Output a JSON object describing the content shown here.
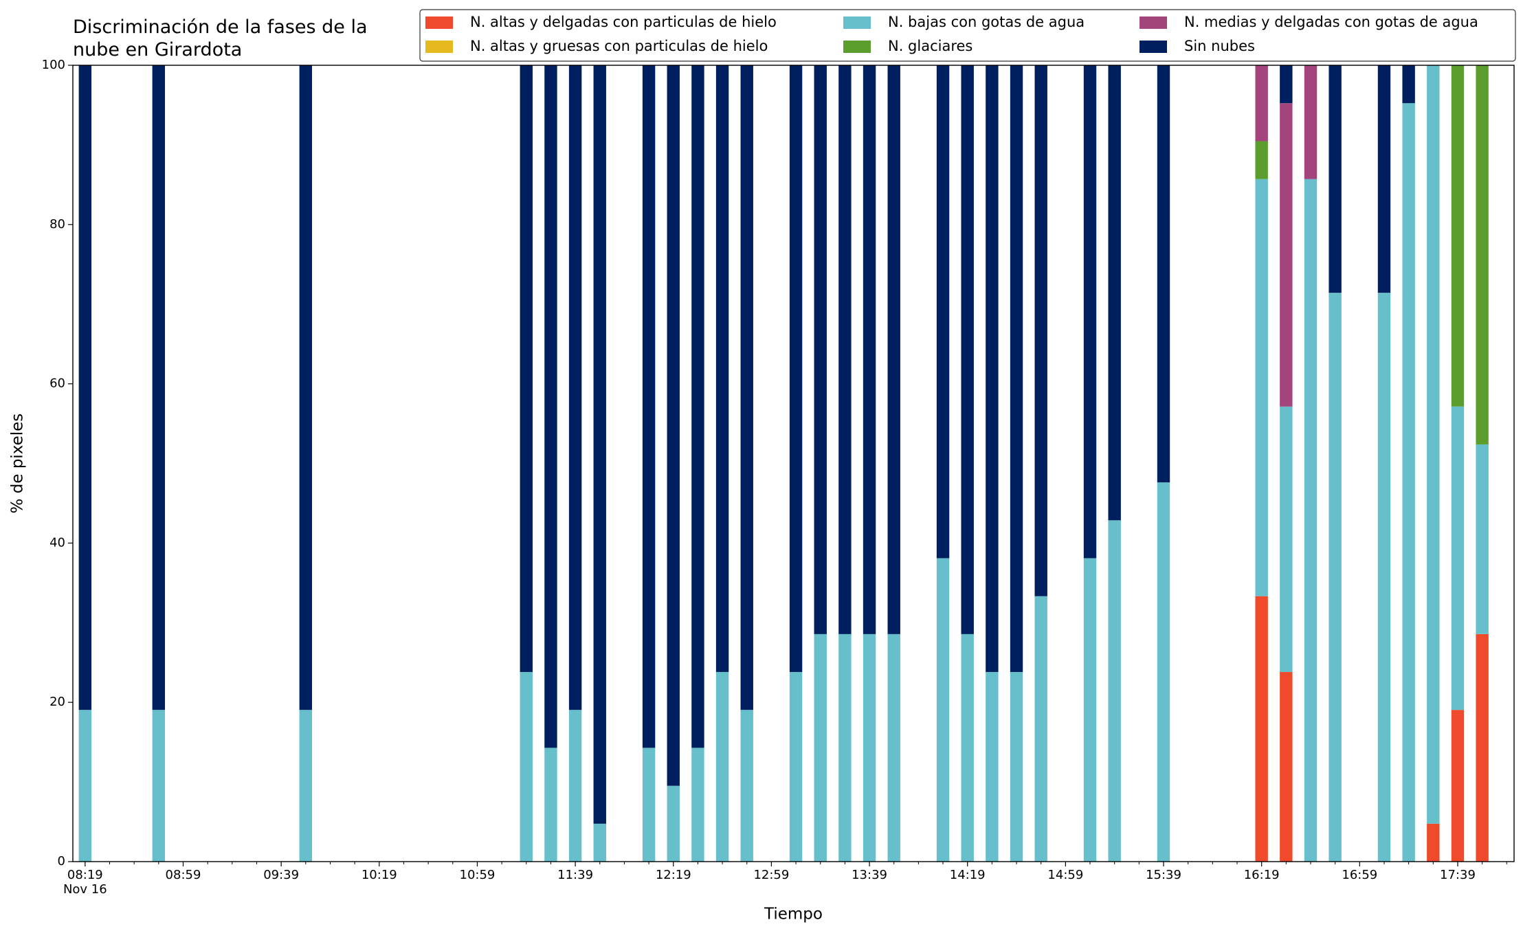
{
  "chart_data": {
    "type": "stacked_bar",
    "title": "Discriminación de la fases de la\nnube en Girardota",
    "xlabel": "Tiempo",
    "ylabel": "% de pixeles",
    "x": [
      "08:19",
      "08:49",
      "09:49",
      "11:19",
      "11:29",
      "11:39",
      "11:49",
      "12:09",
      "12:19",
      "12:29",
      "12:39",
      "12:49",
      "13:09",
      "13:19",
      "13:29",
      "13:39",
      "13:49",
      "14:09",
      "14:19",
      "14:29",
      "14:39",
      "14:49",
      "15:09",
      "15:19",
      "15:39",
      "16:19",
      "16:29",
      "16:39",
      "16:49",
      "17:09",
      "17:19",
      "17:29",
      "17:39",
      "17:49"
    ],
    "series": [
      {
        "name": "N. altas y delgadas con particulas de hielo",
        "color": "#ef4a2b",
        "values": [
          0,
          0,
          0,
          0,
          0,
          0,
          0,
          0,
          0,
          0,
          0,
          0,
          0,
          0,
          0,
          0,
          0,
          0,
          0,
          0,
          0,
          0,
          0,
          0,
          0,
          33.33,
          23.81,
          0,
          0,
          0,
          0,
          4.76,
          19.05,
          28.57
        ]
      },
      {
        "name": "N. altas y gruesas con particulas de hielo",
        "color": "#e6b91e",
        "values": [
          0,
          0,
          0,
          0,
          0,
          0,
          0,
          0,
          0,
          0,
          0,
          0,
          0,
          0,
          0,
          0,
          0,
          0,
          0,
          0,
          0,
          0,
          0,
          0,
          0,
          0,
          0,
          0,
          0,
          0,
          0,
          0,
          0,
          0
        ]
      },
      {
        "name": "N. bajas con gotas de agua",
        "color": "#67bfcb",
        "values": [
          19.05,
          19.05,
          19.05,
          23.81,
          14.29,
          19.05,
          4.76,
          14.29,
          9.52,
          14.29,
          23.81,
          19.05,
          23.81,
          28.57,
          28.57,
          28.57,
          28.57,
          38.1,
          28.57,
          23.81,
          23.81,
          33.33,
          38.1,
          42.86,
          47.62,
          52.38,
          33.33,
          85.71,
          71.43,
          71.43,
          95.24,
          95.24,
          38.1,
          23.81
        ]
      },
      {
        "name": "N. glaciares",
        "color": "#5c9e2e",
        "values": [
          0,
          0,
          0,
          0,
          0,
          0,
          0,
          0,
          0,
          0,
          0,
          0,
          0,
          0,
          0,
          0,
          0,
          0,
          0,
          0,
          0,
          0,
          0,
          0,
          0,
          4.76,
          0,
          0,
          0,
          0,
          0,
          0,
          42.86,
          47.62
        ]
      },
      {
        "name": "N. medias y delgadas con gotas de agua",
        "color": "#a3447c",
        "values": [
          0,
          0,
          0,
          0,
          0,
          0,
          0,
          0,
          0,
          0,
          0,
          0,
          0,
          0,
          0,
          0,
          0,
          0,
          0,
          0,
          0,
          0,
          0,
          0,
          0,
          9.52,
          38.1,
          14.29,
          0,
          0,
          0,
          0,
          0,
          0
        ]
      },
      {
        "name": "Sin nubes",
        "color": "#001f5e",
        "values": [
          80.95,
          80.95,
          80.95,
          76.19,
          85.71,
          80.95,
          95.24,
          85.71,
          90.48,
          85.71,
          76.19,
          80.95,
          76.19,
          71.43,
          71.43,
          71.43,
          71.43,
          61.9,
          71.43,
          76.19,
          76.19,
          66.67,
          61.9,
          57.14,
          52.38,
          0,
          4.76,
          0,
          28.57,
          28.57,
          4.76,
          0,
          0,
          0
        ]
      }
    ],
    "xlim": [
      "08:14",
      "18:02"
    ],
    "xticks": [
      {
        "value": "08:19",
        "label": "08:19\nNov 16"
      },
      "08:59",
      "09:39",
      "10:19",
      "10:59",
      "11:39",
      "12:19",
      "12:59",
      "13:39",
      "14:19",
      "14:59",
      "15:39",
      "16:19",
      "16:59",
      "17:39"
    ],
    "xminorticks": [
      "08:29",
      "08:39",
      "08:49",
      "09:09",
      "09:19",
      "09:29",
      "09:49",
      "09:59",
      "10:09",
      "10:29",
      "10:39",
      "10:49",
      "11:09",
      "11:19",
      "11:29",
      "11:49",
      "11:59",
      "12:09",
      "12:29",
      "12:39",
      "12:49",
      "13:09",
      "13:19",
      "13:29",
      "13:49",
      "13:59",
      "14:09",
      "14:29",
      "14:39",
      "14:49",
      "15:09",
      "15:19",
      "15:29",
      "15:49",
      "15:59",
      "16:09",
      "16:29",
      "16:39",
      "16:49",
      "17:09",
      "17:19",
      "17:29",
      "17:49",
      "17:59"
    ],
    "ylim": [
      0,
      100
    ],
    "yticks": [
      0,
      20,
      40,
      60,
      80,
      100
    ],
    "legend": "upper right"
  }
}
